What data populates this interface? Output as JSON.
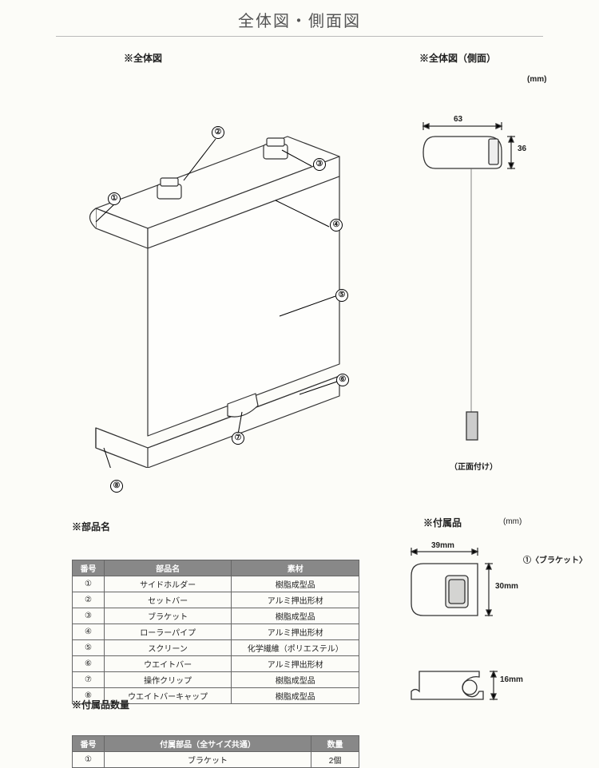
{
  "title": "全体図・側面図",
  "main_label": "※全体図",
  "side_label": "※全体図（側面）",
  "unit": "(mm)",
  "side_w": "63",
  "side_h": "36",
  "side_caption": "（正面付け）",
  "parts_label": "※部品名",
  "table1": {
    "headers": [
      "番号",
      "部品名",
      "素材"
    ],
    "rows": [
      [
        "①",
        "サイドホルダー",
        "樹脂成型品"
      ],
      [
        "②",
        "セットバー",
        "アルミ押出形材"
      ],
      [
        "③",
        "ブラケット",
        "樹脂成型品"
      ],
      [
        "④",
        "ローラーパイプ",
        "アルミ押出形材"
      ],
      [
        "⑤",
        "スクリーン",
        "化学繊維（ポリエステル）"
      ],
      [
        "⑥",
        "ウエイトバー",
        "アルミ押出形材"
      ],
      [
        "⑦",
        "操作クリップ",
        "樹脂成型品"
      ],
      [
        "⑧",
        "ウエイトバーキャップ",
        "樹脂成型品"
      ]
    ]
  },
  "qty_label": "※付属品数量",
  "table2": {
    "headers": [
      "番号",
      "付属部品（全サイズ共通）",
      "数量"
    ],
    "rows": [
      [
        "①",
        "ブラケット",
        "2個"
      ]
    ]
  },
  "acc_label": "※付属品",
  "acc_unit": "(mm)",
  "acc_note": "①〈ブラケット〉",
  "acc_w": "39mm",
  "acc_h": "30mm",
  "acc_clip_h": "16mm",
  "callouts": [
    "①",
    "②",
    "③",
    "④",
    "⑤",
    "⑥",
    "⑦",
    "⑧"
  ]
}
